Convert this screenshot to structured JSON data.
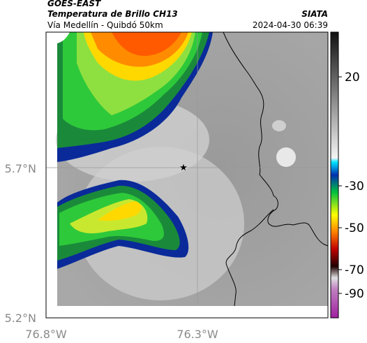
{
  "header": {
    "satellite": "GOES-EAST",
    "product": "Temperatura de Brillo CH13",
    "route": "Vía Medellín - Quibdó 50km",
    "source": "SIATA",
    "timestamp": "2024-04-30 06:39"
  },
  "axes": {
    "lat_labels": [
      "5.7°N",
      "5.2°N"
    ],
    "lon_labels": [
      "76.8°W",
      "76.3°W"
    ]
  },
  "colorbar": {
    "labels": [
      20,
      -30,
      -50,
      -70,
      -90
    ]
  }
}
